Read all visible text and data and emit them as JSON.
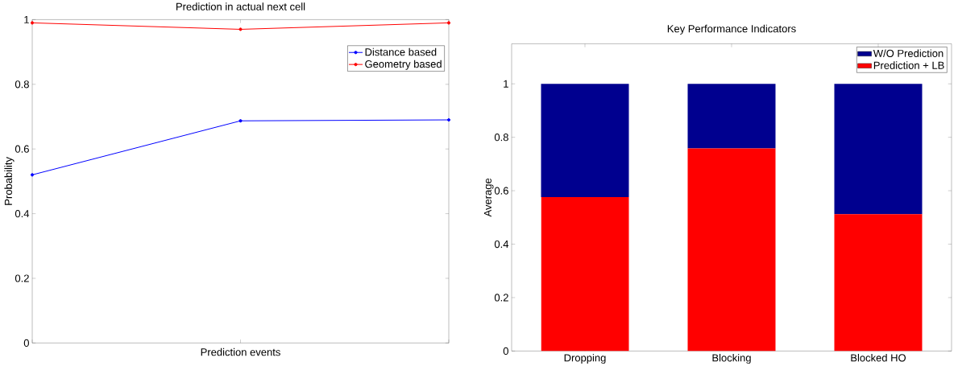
{
  "chart_data": [
    {
      "type": "line",
      "title": "Prediction in actual next cell",
      "xlabel": "Prediction events",
      "ylabel": "Probability",
      "categories": [
        null,
        null,
        null
      ],
      "series": [
        {
          "name": "Distance based",
          "color": "#0000ff",
          "values": [
            0.52,
            0.687,
            0.69
          ]
        },
        {
          "name": "Geometry based",
          "color": "#ff0000",
          "values": [
            0.99,
            0.97,
            0.99
          ]
        }
      ],
      "ylim": [
        0,
        1
      ],
      "yticks": [
        0,
        0.2,
        0.4,
        0.6,
        0.8,
        1
      ],
      "legend": "top right",
      "marker": "circle",
      "tick_labels": "y"
    },
    {
      "type": "bar",
      "title": "Key Performance Indicators",
      "ylabel": "Average",
      "categories": [
        "Dropping",
        "Blocking",
        "Blocked HO"
      ],
      "stacked": true,
      "series": [
        {
          "name": "Prediction + LB",
          "color": "#ff0000",
          "values": [
            0.576,
            0.758,
            0.512
          ]
        },
        {
          "name": "W/O Prediction",
          "color": "#00008f",
          "values": [
            0.424,
            0.242,
            0.488
          ]
        }
      ],
      "ylim": [
        0,
        1.15
      ],
      "yticks": [
        0,
        0.2,
        0.4,
        0.6,
        0.8,
        1
      ],
      "legend": "top right"
    }
  ]
}
